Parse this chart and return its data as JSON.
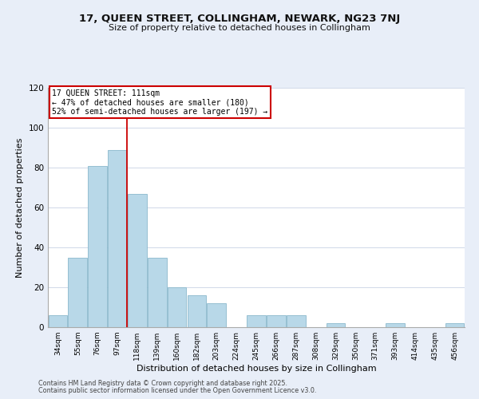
{
  "title": "17, QUEEN STREET, COLLINGHAM, NEWARK, NG23 7NJ",
  "subtitle": "Size of property relative to detached houses in Collingham",
  "xlabel": "Distribution of detached houses by size in Collingham",
  "ylabel": "Number of detached properties",
  "categories": [
    "34sqm",
    "55sqm",
    "76sqm",
    "97sqm",
    "118sqm",
    "139sqm",
    "160sqm",
    "182sqm",
    "203sqm",
    "224sqm",
    "245sqm",
    "266sqm",
    "287sqm",
    "308sqm",
    "329sqm",
    "350sqm",
    "371sqm",
    "393sqm",
    "414sqm",
    "435sqm",
    "456sqm"
  ],
  "values": [
    6,
    35,
    81,
    89,
    67,
    35,
    20,
    16,
    12,
    0,
    6,
    6,
    6,
    0,
    2,
    0,
    0,
    2,
    0,
    0,
    2
  ],
  "bar_color": "#b8d8e8",
  "bar_edge_color": "#8ab8cc",
  "ref_line_x": 3.5,
  "ref_line_color": "#cc0000",
  "annotation_title": "17 QUEEN STREET: 111sqm",
  "annotation_line1": "← 47% of detached houses are smaller (180)",
  "annotation_line2": "52% of semi-detached houses are larger (197) →",
  "ylim": [
    0,
    120
  ],
  "yticks": [
    0,
    20,
    40,
    60,
    80,
    100,
    120
  ],
  "footer_line1": "Contains HM Land Registry data © Crown copyright and database right 2025.",
  "footer_line2": "Contains public sector information licensed under the Open Government Licence v3.0.",
  "background_color": "#e8eef8",
  "plot_background_color": "#ffffff",
  "grid_color": "#d0d8e8"
}
